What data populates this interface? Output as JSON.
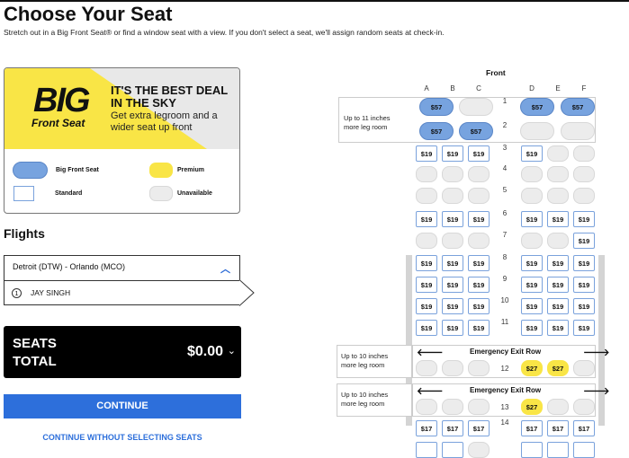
{
  "header": {
    "title": "Choose Your Seat",
    "subtitle": "Stretch out in a Big Front Seat® or find a window seat with a view. If you don't select a seat, we'll assign random seats at check-in."
  },
  "promo": {
    "logo_big": "BIG",
    "logo_sub": "Front Seat",
    "headline": "IT'S THE BEST DEAL IN THE SKY",
    "body": "Get extra legroom and a wider seat up front",
    "legend": {
      "big": "Big Front Seat",
      "premium": "Premium",
      "standard": "Standard",
      "unavailable": "Unavailable"
    }
  },
  "colors": {
    "big": "#77a3df",
    "premium": "#f9e546",
    "standard_border": "#7aa2dc",
    "unavailable": "#ececec",
    "accent": "#2d6fdb",
    "banner": "#f9e546"
  },
  "flights": {
    "heading": "Flights",
    "route": "Detroit (DTW) - Orlando (MCO)",
    "passenger_num": "1",
    "passenger": "JAY SINGH"
  },
  "total": {
    "label_line1": "SEATS",
    "label_line2": "TOTAL",
    "amount": "$0.00"
  },
  "buttons": {
    "continue": "CONTINUE",
    "skip": "CONTINUE WITHOUT SELECTING SEATS"
  },
  "seatmap": {
    "front": "Front",
    "columns": [
      "A",
      "B",
      "C",
      "D",
      "E",
      "F"
    ],
    "zone_big_label": "Up to 11 inches more leg room",
    "exit_label": "Up to 10 inches more leg room",
    "exit_title": "Emergency Exit Row",
    "rows": [
      {
        "n": "1",
        "seats": [
          [
            "big",
            "$57"
          ],
          [
            "bigna",
            ""
          ],
          [
            "big",
            "$57"
          ],
          [
            "big",
            "$57"
          ]
        ]
      },
      {
        "n": "2",
        "seats": [
          [
            "big",
            "$57"
          ],
          [
            "big",
            "$57"
          ],
          [
            "bigna",
            ""
          ],
          [
            "bigna",
            ""
          ]
        ]
      },
      {
        "n": "3",
        "seats": [
          [
            "std",
            "$19"
          ],
          [
            "std",
            "$19"
          ],
          [
            "std",
            "$19"
          ],
          [
            "std",
            "$19"
          ],
          [
            "na",
            ""
          ],
          [
            "na",
            ""
          ]
        ]
      },
      {
        "n": "4",
        "seats": [
          [
            "na",
            ""
          ],
          [
            "na",
            ""
          ],
          [
            "na",
            ""
          ],
          [
            "na",
            ""
          ],
          [
            "na",
            ""
          ],
          [
            "na",
            ""
          ]
        ]
      },
      {
        "n": "5",
        "seats": [
          [
            "na",
            ""
          ],
          [
            "na",
            ""
          ],
          [
            "na",
            ""
          ],
          [
            "na",
            ""
          ],
          [
            "na",
            ""
          ],
          [
            "na",
            ""
          ]
        ]
      },
      {
        "n": "6",
        "seats": [
          [
            "std",
            "$19"
          ],
          [
            "std",
            "$19"
          ],
          [
            "std",
            "$19"
          ],
          [
            "std",
            "$19"
          ],
          [
            "std",
            "$19"
          ],
          [
            "std",
            "$19"
          ]
        ]
      },
      {
        "n": "7",
        "seats": [
          [
            "na",
            ""
          ],
          [
            "na",
            ""
          ],
          [
            "na",
            ""
          ],
          [
            "na",
            ""
          ],
          [
            "na",
            ""
          ],
          [
            "std",
            "$19"
          ]
        ]
      },
      {
        "n": "8",
        "seats": [
          [
            "std",
            "$19"
          ],
          [
            "std",
            "$19"
          ],
          [
            "std",
            "$19"
          ],
          [
            "std",
            "$19"
          ],
          [
            "std",
            "$19"
          ],
          [
            "std",
            "$19"
          ]
        ]
      },
      {
        "n": "9",
        "seats": [
          [
            "std",
            "$19"
          ],
          [
            "std",
            "$19"
          ],
          [
            "std",
            "$19"
          ],
          [
            "std",
            "$19"
          ],
          [
            "std",
            "$19"
          ],
          [
            "std",
            "$19"
          ]
        ]
      },
      {
        "n": "10",
        "seats": [
          [
            "std",
            "$19"
          ],
          [
            "std",
            "$19"
          ],
          [
            "std",
            "$19"
          ],
          [
            "std",
            "$19"
          ],
          [
            "std",
            "$19"
          ],
          [
            "std",
            "$19"
          ]
        ]
      },
      {
        "n": "11",
        "seats": [
          [
            "std",
            "$19"
          ],
          [
            "std",
            "$19"
          ],
          [
            "std",
            "$19"
          ],
          [
            "std",
            "$19"
          ],
          [
            "std",
            "$19"
          ],
          [
            "std",
            "$19"
          ]
        ]
      },
      {
        "n": "12",
        "exit": true,
        "seats": [
          [
            "na",
            ""
          ],
          [
            "na",
            ""
          ],
          [
            "na",
            ""
          ],
          [
            "prem",
            "$27"
          ],
          [
            "prem",
            "$27"
          ],
          [
            "na",
            ""
          ]
        ]
      },
      {
        "n": "13",
        "exit": true,
        "seats": [
          [
            "na",
            ""
          ],
          [
            "na",
            ""
          ],
          [
            "na",
            ""
          ],
          [
            "prem",
            "$27"
          ],
          [
            "na",
            ""
          ],
          [
            "na",
            ""
          ]
        ]
      },
      {
        "n": "14",
        "seats": [
          [
            "std",
            "$17"
          ],
          [
            "std",
            "$17"
          ],
          [
            "std",
            "$17"
          ],
          [
            "std",
            "$17"
          ],
          [
            "std",
            "$17"
          ],
          [
            "std",
            "$17"
          ]
        ]
      },
      {
        "n": "",
        "seats": [
          [
            "std",
            ""
          ],
          [
            "std",
            ""
          ],
          [
            "na",
            ""
          ],
          [
            "std",
            ""
          ],
          [
            "std",
            ""
          ],
          [
            "std",
            ""
          ]
        ]
      }
    ]
  }
}
